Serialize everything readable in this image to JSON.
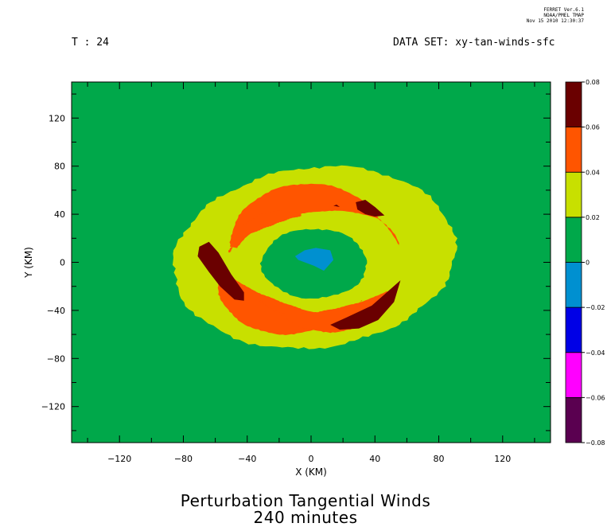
{
  "header": {
    "software": "FERRET Ver.6.1",
    "org": "NOAA/PMEL TMAP",
    "date": "Nov 15 2010 12:30:37",
    "time_label": "T : 24",
    "dataset_label": "DATA SET: xy-tan-winds-sfc"
  },
  "chart_data": {
    "type": "heatmap",
    "title": "Perturbation Tangential Winds",
    "subtitle": "240 minutes",
    "xlabel": "X (KM)",
    "ylabel": "Y (KM)",
    "xlim": [
      -150,
      150
    ],
    "ylim": [
      -150,
      150
    ],
    "xticks": [
      -120,
      -80,
      -40,
      0,
      40,
      80,
      120
    ],
    "yticks": [
      120,
      80,
      40,
      0,
      -40,
      -80,
      -120
    ],
    "colorbar": {
      "levels": [
        -0.08,
        -0.06,
        -0.04,
        -0.02,
        0,
        0.02,
        0.04,
        0.06,
        0.08
      ],
      "level_labels": [
        "-0.08",
        "-0.06",
        "-0.04",
        "-0.02",
        "0",
        "0.02",
        "0.04",
        "0.06",
        "0.08"
      ],
      "colors": [
        "#5a0050",
        "#ff00ff",
        "#0000e6",
        "#0090d0",
        "#00a84a",
        "#c8e000",
        "#ff5500",
        "#6a0000"
      ]
    },
    "regions": [
      {
        "band": [
          0.0,
          0.02
        ],
        "color": "#00a84a",
        "desc": "background"
      },
      {
        "band": [
          0.02,
          0.04
        ],
        "color": "#c8e000",
        "desc": "outer ring"
      },
      {
        "band": [
          0.04,
          0.06
        ],
        "color": "#ff5500",
        "desc": "spiral bands"
      },
      {
        "band": [
          0.06,
          0.08
        ],
        "color": "#6a0000",
        "desc": "maxima"
      },
      {
        "band": [
          -0.02,
          0
        ],
        "color": "#0090d0",
        "desc": "eye"
      }
    ]
  }
}
